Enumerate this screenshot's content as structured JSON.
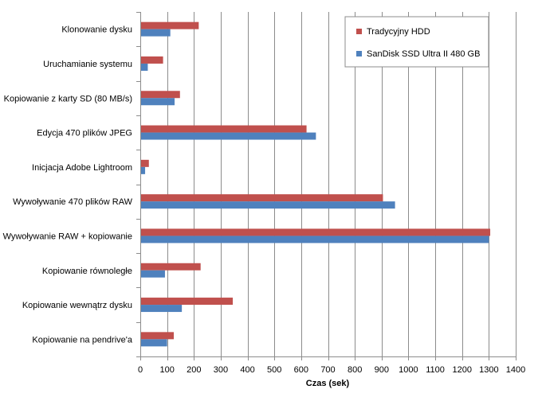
{
  "chart_data": {
    "type": "bar",
    "orientation": "horizontal",
    "categories": [
      "Klonowanie dysku",
      "Uruchamianie systemu",
      "Kopiowanie z karty SD (80 MB/s)",
      "Edycja 470 plików JPEG",
      "Inicjacja Adobe Lightroom",
      "Wywoływanie 470 plików RAW",
      "Wywoływanie RAW + kopiowanie",
      "Kopiowanie równoległe",
      "Kopiowanie wewnątrz dysku",
      "Kopiowanie na pendrive'a"
    ],
    "series": [
      {
        "name": "Tradycyjny HDD",
        "color": "#C0504D",
        "values": [
          218,
          85,
          148,
          620,
          32,
          905,
          1305,
          225,
          345,
          125
        ]
      },
      {
        "name": "SanDisk SSD Ultra II 480 GB",
        "color": "#4F81BD",
        "values": [
          112,
          28,
          128,
          655,
          18,
          950,
          1300,
          92,
          155,
          100
        ]
      }
    ],
    "xlabel": "Czas (sek)",
    "ylabel": "",
    "xlim": [
      0,
      1400
    ],
    "x_ticks": [
      0,
      100,
      200,
      300,
      400,
      500,
      600,
      700,
      800,
      900,
      1000,
      1100,
      1200,
      1300,
      1400
    ],
    "grid": true,
    "legend_position": "top-right"
  }
}
